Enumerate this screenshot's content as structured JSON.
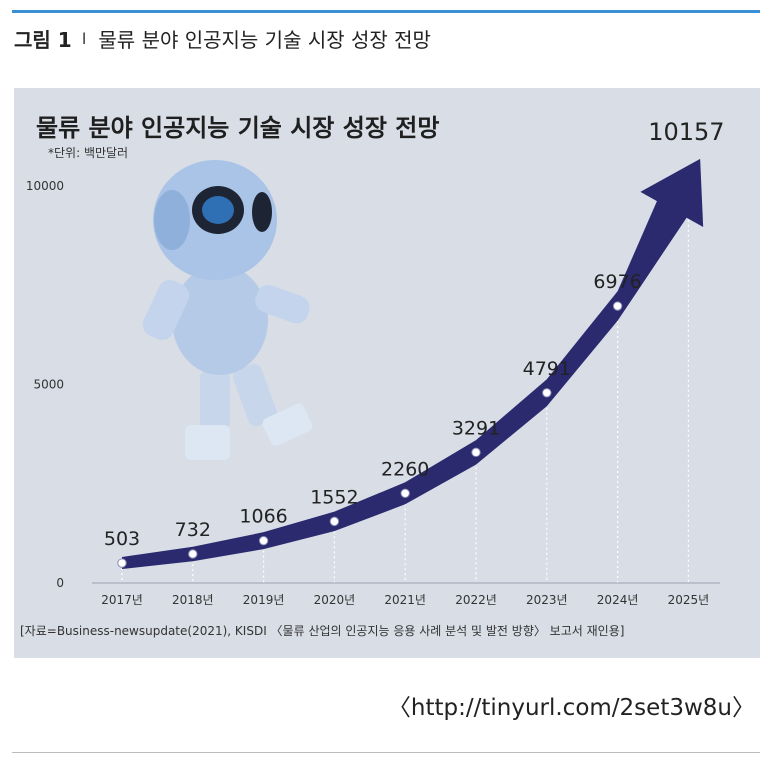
{
  "figure": {
    "number": "그림 1",
    "separator": "I",
    "caption": "물류 분야 인공지능 기술 시장 성장 전망"
  },
  "unit_note": "*단위: 백만달러",
  "source_note": "[자료=Business-newsupdate(2021), KISDI 〈물류 산업의 인공지능 응용 사례 분석 및 발전 방향〉 보고서 재인용]",
  "url": "〈http://tinyurl.com/2set3w8u〉",
  "colors": {
    "curve": "#2b2a6e",
    "point": "#ffffff",
    "panel": "#d8dde6",
    "robot": "#a9c4e6"
  },
  "chart_data": {
    "type": "area",
    "title": "물류 분야 인공지능 기술 시장 성장 전망",
    "categories": [
      "2017년",
      "2018년",
      "2019년",
      "2020년",
      "2021년",
      "2022년",
      "2023년",
      "2024년",
      "2025년"
    ],
    "series": [
      {
        "values": [
          503,
          732,
          1066,
          1552,
          2260,
          3291,
          4791,
          6976,
          10157
        ]
      }
    ],
    "data_labels": [
      "503",
      "732",
      "1066",
      "1552",
      "2260",
      "3291",
      "4791",
      "6976",
      "10157"
    ],
    "y_ticks": [
      "0",
      "5000",
      "10000"
    ],
    "ylim": [
      0,
      10000
    ],
    "grid": "vertical dotted lines",
    "legend": "none"
  }
}
